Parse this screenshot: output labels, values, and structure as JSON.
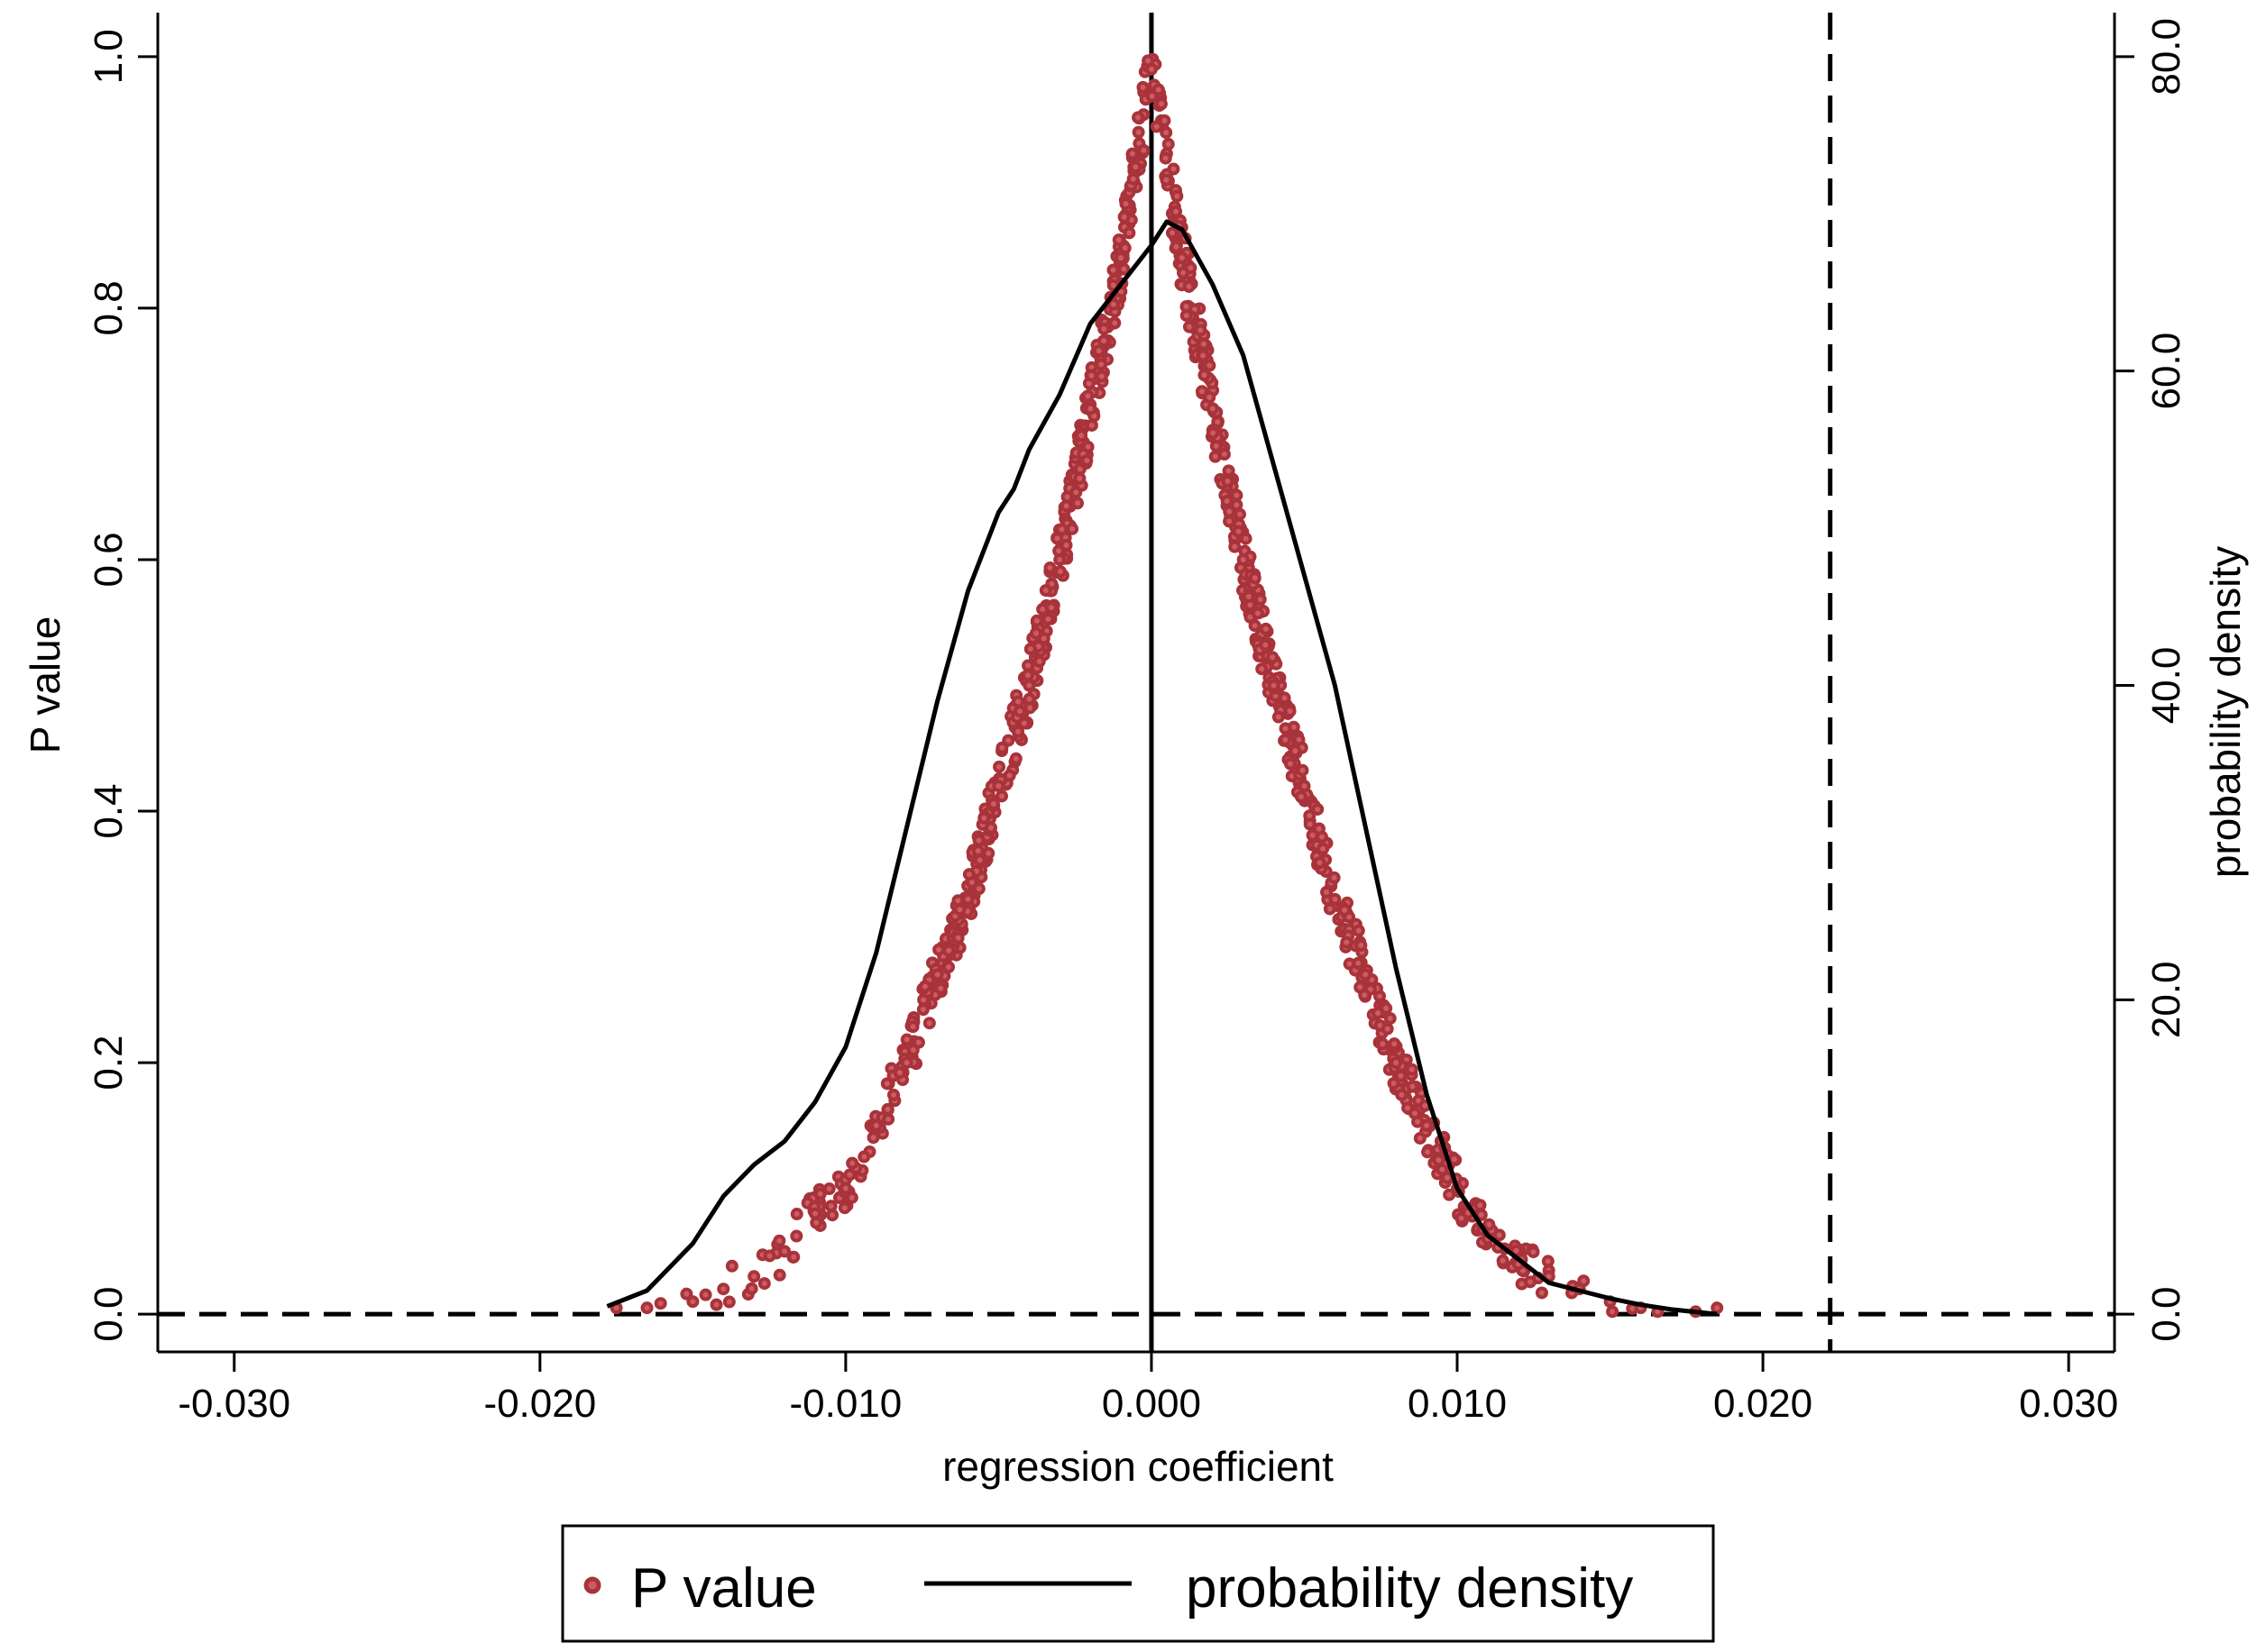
{
  "chart_data": {
    "type": "scatter",
    "title": "",
    "xlabel": "regression coefficient",
    "ylabel": "P value",
    "y2label": "probability density",
    "xlim": [
      -0.0325,
      0.0315
    ],
    "ylim": [
      -0.03,
      1.035
    ],
    "y2lim": [
      -2.4,
      82.8
    ],
    "x_ticks": [
      -0.03,
      -0.02,
      -0.01,
      0.0,
      0.01,
      0.02,
      0.03
    ],
    "x_tick_labels": [
      "-0.030",
      "-0.020",
      "-0.010",
      "0.000",
      "0.010",
      "0.020",
      "0.030"
    ],
    "y_ticks": [
      0.0,
      0.2,
      0.4,
      0.6,
      0.8,
      1.0
    ],
    "y_tick_labels": [
      "0.0",
      "0.2",
      "0.4",
      "0.6",
      "0.8",
      "1.0"
    ],
    "y2_ticks": [
      0,
      20,
      40,
      60,
      80
    ],
    "y2_tick_labels": [
      "0.0",
      "20.0",
      "40.0",
      "60.0",
      "80.0"
    ],
    "grid": false,
    "reference_lines": [
      {
        "orientation": "vertical",
        "value": 0.0,
        "style": "solid"
      },
      {
        "orientation": "vertical",
        "value": 0.0222,
        "style": "dashed"
      },
      {
        "orientation": "horizontal",
        "value": 0.0,
        "style": "dashed"
      }
    ],
    "series": [
      {
        "name": "P value",
        "kind": "scatter",
        "axis": "left",
        "color": "#a8333a",
        "description_points": [
          [
            -0.0175,
            0.005
          ],
          [
            -0.0165,
            0.005
          ],
          [
            -0.015,
            0.01
          ],
          [
            -0.014,
            0.02
          ],
          [
            -0.013,
            0.03
          ],
          [
            -0.012,
            0.05
          ],
          [
            -0.011,
            0.08
          ],
          [
            -0.01,
            0.1
          ],
          [
            -0.009,
            0.15
          ],
          [
            -0.008,
            0.2
          ],
          [
            -0.007,
            0.27
          ],
          [
            -0.006,
            0.33
          ],
          [
            -0.005,
            0.42
          ],
          [
            -0.004,
            0.5
          ],
          [
            -0.003,
            0.6
          ],
          [
            -0.002,
            0.72
          ],
          [
            -0.001,
            0.84
          ],
          [
            0.0,
            0.99
          ],
          [
            0.001,
            0.84
          ],
          [
            0.002,
            0.72
          ],
          [
            0.003,
            0.6
          ],
          [
            0.004,
            0.5
          ],
          [
            0.005,
            0.42
          ],
          [
            0.006,
            0.33
          ],
          [
            0.007,
            0.27
          ],
          [
            0.008,
            0.2
          ],
          [
            0.009,
            0.15
          ],
          [
            0.01,
            0.1
          ],
          [
            0.011,
            0.06
          ],
          [
            0.012,
            0.04
          ],
          [
            0.013,
            0.03
          ],
          [
            0.014,
            0.02
          ],
          [
            0.015,
            0.01
          ],
          [
            0.016,
            0.005
          ],
          [
            0.0178,
            0.002
          ],
          [
            0.0185,
            0.005
          ]
        ]
      },
      {
        "name": "probability density",
        "kind": "line",
        "axis": "right",
        "color": "#000000",
        "x": [
          -0.0178,
          -0.0165,
          -0.015,
          -0.014,
          -0.013,
          -0.012,
          -0.011,
          -0.01,
          -0.009,
          -0.008,
          -0.007,
          -0.006,
          -0.005,
          -0.0045,
          -0.004,
          -0.003,
          -0.002,
          -0.001,
          0.0,
          0.0005,
          0.001,
          0.002,
          0.003,
          0.004,
          0.005,
          0.006,
          0.007,
          0.008,
          0.009,
          0.01,
          0.011,
          0.012,
          0.013,
          0.014,
          0.015,
          0.016,
          0.017,
          0.0185
        ],
        "y": [
          0.5,
          1.5,
          4.5,
          7.5,
          9.5,
          11,
          13.5,
          17,
          23,
          31,
          39,
          46,
          51,
          52.5,
          55,
          58.5,
          63,
          65.5,
          68,
          69.5,
          69,
          65.5,
          61,
          54,
          47,
          40,
          31,
          22,
          14,
          8,
          5,
          3.5,
          2,
          1.5,
          1,
          0.6,
          0.3,
          0.0
        ]
      }
    ],
    "legend": {
      "position": "bottom",
      "entries": [
        "P value",
        "probability density"
      ]
    }
  }
}
